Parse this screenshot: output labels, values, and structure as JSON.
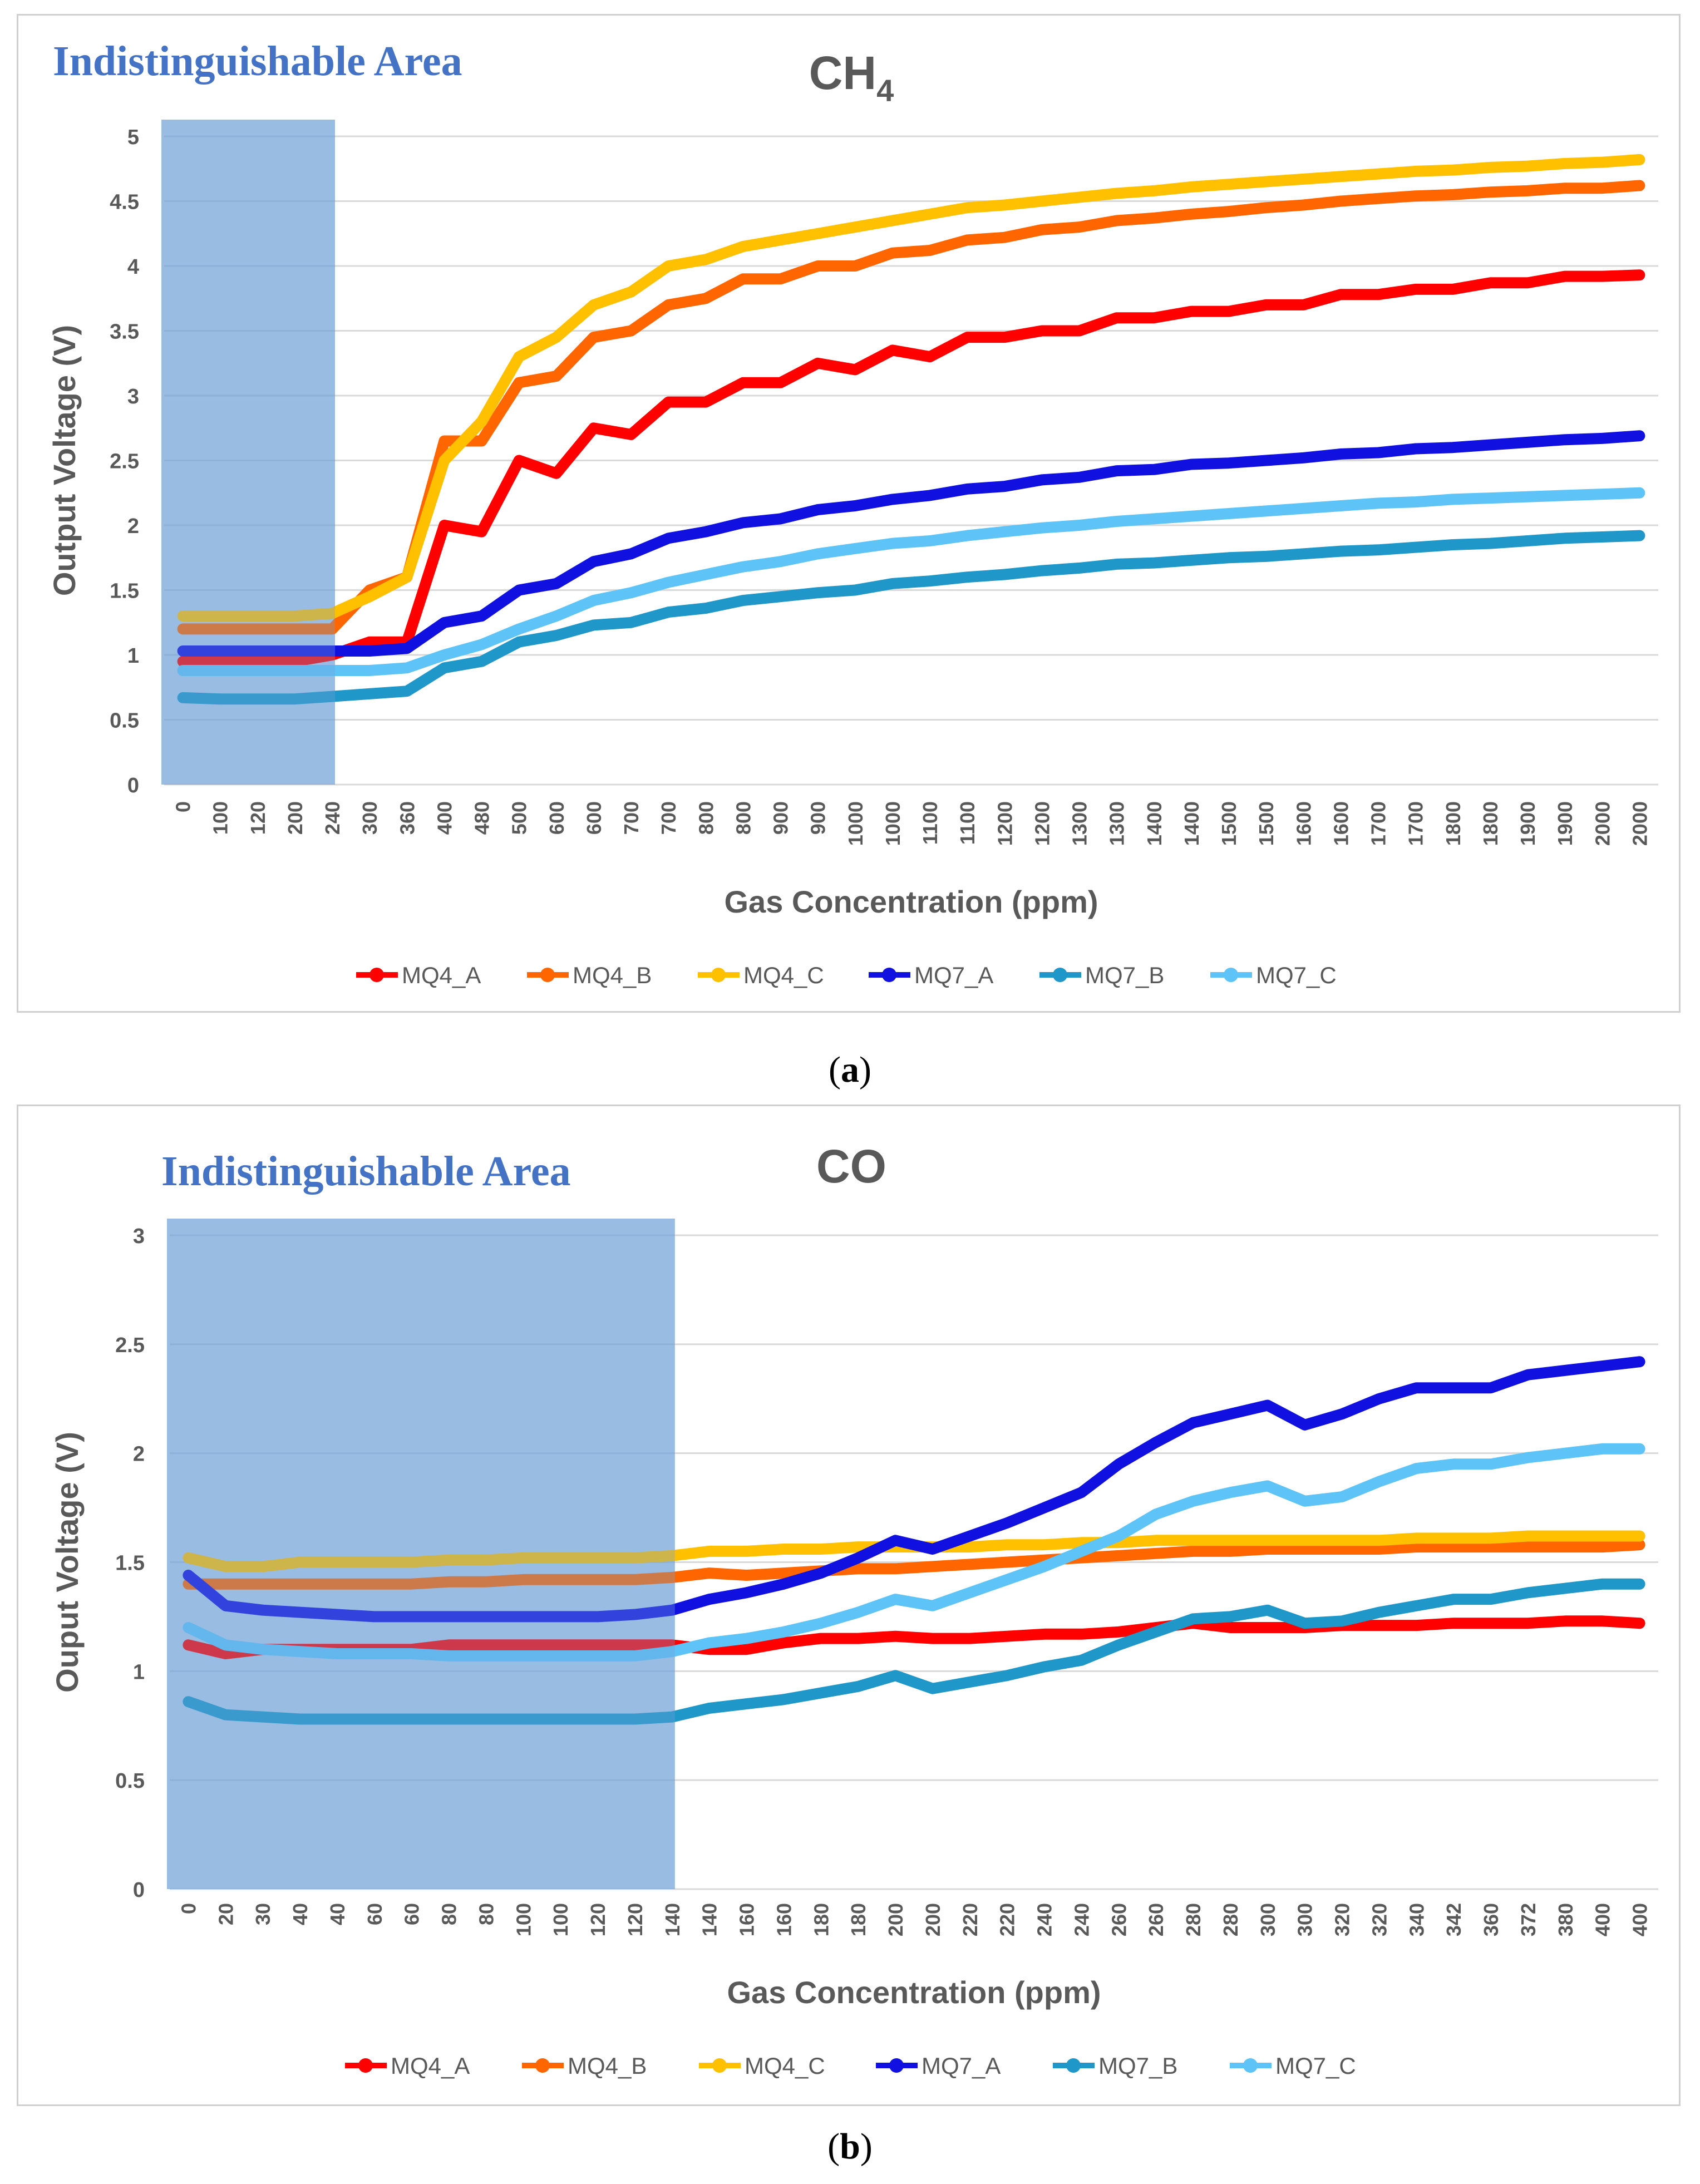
{
  "figure": {
    "caption_a": {
      "open": "(",
      "letter": "a",
      "close": ")"
    },
    "caption_b": {
      "open": "(",
      "letter": "b",
      "close": ")"
    }
  },
  "colors": {
    "MQ4_A": "#ff0000",
    "MQ4_B": "#ff6600",
    "MQ4_C": "#ffc000",
    "MQ7_A": "#1010e0",
    "MQ7_B": "#1f97c8",
    "MQ7_C": "#5ec4f7",
    "shade": "#6fa0d8",
    "annotation": "#4472c4",
    "grid": "#d9d9d9",
    "axis_text": "#595959"
  },
  "chart_data": [
    {
      "type": "line",
      "title": "CH",
      "title_sub": "4",
      "annotation": "Indistinguishable  Area",
      "xlabel": "Gas Concentration (ppm)",
      "ylabel": "Output Voltage (V)",
      "ylim": [
        0,
        5
      ],
      "yticks": [
        "0",
        "0.5",
        "1",
        "1.5",
        "2",
        "2.5",
        "3",
        "3.5",
        "4",
        "4.5",
        "5"
      ],
      "categories": [
        "0",
        "100",
        "120",
        "200",
        "240",
        "300",
        "360",
        "400",
        "480",
        "500",
        "600",
        "600",
        "700",
        "700",
        "800",
        "800",
        "900",
        "900",
        "1000",
        "1000",
        "1100",
        "1100",
        "1200",
        "1200",
        "1300",
        "1300",
        "1400",
        "1400",
        "1500",
        "1500",
        "1600",
        "1600",
        "1700",
        "1700",
        "1800",
        "1800",
        "1900",
        "1900",
        "2000",
        "2000"
      ],
      "shaded_region": {
        "from_category": "0",
        "to_category": "240"
      },
      "series": [
        {
          "name": "MQ4_A",
          "values": [
            0.95,
            0.95,
            0.95,
            0.95,
            1.0,
            1.1,
            1.1,
            2.0,
            1.95,
            2.5,
            2.4,
            2.75,
            2.7,
            2.95,
            2.95,
            3.1,
            3.1,
            3.25,
            3.2,
            3.35,
            3.3,
            3.45,
            3.45,
            3.5,
            3.5,
            3.6,
            3.6,
            3.65,
            3.65,
            3.7,
            3.7,
            3.78,
            3.78,
            3.82,
            3.82,
            3.87,
            3.87,
            3.92,
            3.92,
            3.93
          ]
        },
        {
          "name": "MQ4_B",
          "values": [
            1.2,
            1.2,
            1.2,
            1.2,
            1.2,
            1.5,
            1.6,
            2.65,
            2.65,
            3.1,
            3.15,
            3.45,
            3.5,
            3.7,
            3.75,
            3.9,
            3.9,
            4.0,
            4.0,
            4.1,
            4.12,
            4.2,
            4.22,
            4.28,
            4.3,
            4.35,
            4.37,
            4.4,
            4.42,
            4.45,
            4.47,
            4.5,
            4.52,
            4.54,
            4.55,
            4.57,
            4.58,
            4.6,
            4.6,
            4.62
          ]
        },
        {
          "name": "MQ4_C",
          "values": [
            1.3,
            1.3,
            1.3,
            1.3,
            1.32,
            1.45,
            1.6,
            2.5,
            2.8,
            3.3,
            3.45,
            3.7,
            3.8,
            4.0,
            4.05,
            4.15,
            4.2,
            4.25,
            4.3,
            4.35,
            4.4,
            4.45,
            4.47,
            4.5,
            4.53,
            4.56,
            4.58,
            4.61,
            4.63,
            4.65,
            4.67,
            4.69,
            4.71,
            4.73,
            4.74,
            4.76,
            4.77,
            4.79,
            4.8,
            4.82
          ]
        },
        {
          "name": "MQ7_A",
          "values": [
            1.03,
            1.03,
            1.03,
            1.03,
            1.03,
            1.03,
            1.05,
            1.25,
            1.3,
            1.5,
            1.55,
            1.72,
            1.78,
            1.9,
            1.95,
            2.02,
            2.05,
            2.12,
            2.15,
            2.2,
            2.23,
            2.28,
            2.3,
            2.35,
            2.37,
            2.42,
            2.43,
            2.47,
            2.48,
            2.5,
            2.52,
            2.55,
            2.56,
            2.59,
            2.6,
            2.62,
            2.64,
            2.66,
            2.67,
            2.69
          ]
        },
        {
          "name": "MQ7_B",
          "values": [
            0.67,
            0.66,
            0.66,
            0.66,
            0.68,
            0.7,
            0.72,
            0.9,
            0.95,
            1.1,
            1.15,
            1.23,
            1.25,
            1.33,
            1.36,
            1.42,
            1.45,
            1.48,
            1.5,
            1.55,
            1.57,
            1.6,
            1.62,
            1.65,
            1.67,
            1.7,
            1.71,
            1.73,
            1.75,
            1.76,
            1.78,
            1.8,
            1.81,
            1.83,
            1.85,
            1.86,
            1.88,
            1.9,
            1.91,
            1.92
          ]
        },
        {
          "name": "MQ7_C",
          "values": [
            0.88,
            0.88,
            0.88,
            0.88,
            0.88,
            0.88,
            0.9,
            1.0,
            1.08,
            1.2,
            1.3,
            1.42,
            1.48,
            1.56,
            1.62,
            1.68,
            1.72,
            1.78,
            1.82,
            1.86,
            1.88,
            1.92,
            1.95,
            1.98,
            2.0,
            2.03,
            2.05,
            2.07,
            2.09,
            2.11,
            2.13,
            2.15,
            2.17,
            2.18,
            2.2,
            2.21,
            2.22,
            2.23,
            2.24,
            2.25
          ]
        }
      ],
      "legend": [
        "MQ4_A",
        "MQ4_B",
        "MQ4_C",
        "MQ7_A",
        "MQ7_B",
        "MQ7_C"
      ],
      "legend_position": "bottom"
    },
    {
      "type": "line",
      "title": "CO",
      "title_sub": "",
      "annotation": "Indistinguishable  Area",
      "xlabel": "Gas Concentration (ppm)",
      "ylabel": "Ouput Voltage (V)",
      "ylim": [
        0,
        3
      ],
      "yticks": [
        "0",
        "0.5",
        "1",
        "1.5",
        "2",
        "2.5",
        "3"
      ],
      "categories": [
        "0",
        "20",
        "30",
        "40",
        "40",
        "60",
        "60",
        "80",
        "80",
        "100",
        "100",
        "120",
        "120",
        "140",
        "140",
        "160",
        "160",
        "180",
        "180",
        "200",
        "200",
        "220",
        "220",
        "240",
        "240",
        "260",
        "260",
        "280",
        "280",
        "300",
        "300",
        "320",
        "320",
        "340",
        "342",
        "360",
        "372",
        "380",
        "400",
        "400"
      ],
      "shaded_region": {
        "from_category": "0",
        "to_category": "140"
      },
      "series": [
        {
          "name": "MQ4_A",
          "values": [
            1.12,
            1.08,
            1.1,
            1.1,
            1.1,
            1.1,
            1.1,
            1.12,
            1.12,
            1.12,
            1.12,
            1.12,
            1.12,
            1.12,
            1.1,
            1.1,
            1.13,
            1.15,
            1.15,
            1.16,
            1.15,
            1.15,
            1.16,
            1.17,
            1.17,
            1.18,
            1.2,
            1.22,
            1.2,
            1.2,
            1.2,
            1.21,
            1.21,
            1.21,
            1.22,
            1.22,
            1.22,
            1.23,
            1.23,
            1.22
          ]
        },
        {
          "name": "MQ4_B",
          "values": [
            1.4,
            1.4,
            1.4,
            1.4,
            1.4,
            1.4,
            1.4,
            1.41,
            1.41,
            1.42,
            1.42,
            1.42,
            1.42,
            1.43,
            1.45,
            1.44,
            1.45,
            1.46,
            1.47,
            1.47,
            1.48,
            1.49,
            1.5,
            1.51,
            1.52,
            1.53,
            1.54,
            1.55,
            1.55,
            1.56,
            1.56,
            1.56,
            1.56,
            1.57,
            1.57,
            1.57,
            1.57,
            1.57,
            1.57,
            1.58
          ]
        },
        {
          "name": "MQ4_C",
          "values": [
            1.52,
            1.48,
            1.48,
            1.5,
            1.5,
            1.5,
            1.5,
            1.51,
            1.51,
            1.52,
            1.52,
            1.52,
            1.52,
            1.53,
            1.55,
            1.55,
            1.56,
            1.56,
            1.57,
            1.57,
            1.57,
            1.57,
            1.58,
            1.58,
            1.59,
            1.59,
            1.6,
            1.6,
            1.6,
            1.6,
            1.6,
            1.6,
            1.6,
            1.61,
            1.61,
            1.61,
            1.62,
            1.62,
            1.62,
            1.62
          ]
        },
        {
          "name": "MQ7_A",
          "values": [
            1.44,
            1.3,
            1.28,
            1.27,
            1.26,
            1.25,
            1.25,
            1.25,
            1.25,
            1.25,
            1.25,
            1.25,
            1.26,
            1.28,
            1.33,
            1.36,
            1.4,
            1.45,
            1.52,
            1.6,
            1.56,
            1.62,
            1.68,
            1.75,
            1.82,
            1.95,
            2.05,
            2.14,
            2.18,
            2.22,
            2.13,
            2.18,
            2.25,
            2.3,
            2.3,
            2.3,
            2.36,
            2.38,
            2.4,
            2.42
          ]
        },
        {
          "name": "MQ7_B",
          "values": [
            0.86,
            0.8,
            0.79,
            0.78,
            0.78,
            0.78,
            0.78,
            0.78,
            0.78,
            0.78,
            0.78,
            0.78,
            0.78,
            0.79,
            0.83,
            0.85,
            0.87,
            0.9,
            0.93,
            0.98,
            0.92,
            0.95,
            0.98,
            1.02,
            1.05,
            1.12,
            1.18,
            1.24,
            1.25,
            1.28,
            1.22,
            1.23,
            1.27,
            1.3,
            1.33,
            1.33,
            1.36,
            1.38,
            1.4,
            1.4
          ]
        },
        {
          "name": "MQ7_C",
          "values": [
            1.2,
            1.12,
            1.1,
            1.09,
            1.08,
            1.08,
            1.08,
            1.07,
            1.07,
            1.07,
            1.07,
            1.07,
            1.07,
            1.09,
            1.13,
            1.15,
            1.18,
            1.22,
            1.27,
            1.33,
            1.3,
            1.36,
            1.42,
            1.48,
            1.55,
            1.62,
            1.72,
            1.78,
            1.82,
            1.85,
            1.78,
            1.8,
            1.87,
            1.93,
            1.95,
            1.95,
            1.98,
            2.0,
            2.02,
            2.02
          ]
        }
      ],
      "legend": [
        "MQ4_A",
        "MQ4_B",
        "MQ4_C",
        "MQ7_A",
        "MQ7_B",
        "MQ7_C"
      ],
      "legend_position": "bottom"
    }
  ]
}
